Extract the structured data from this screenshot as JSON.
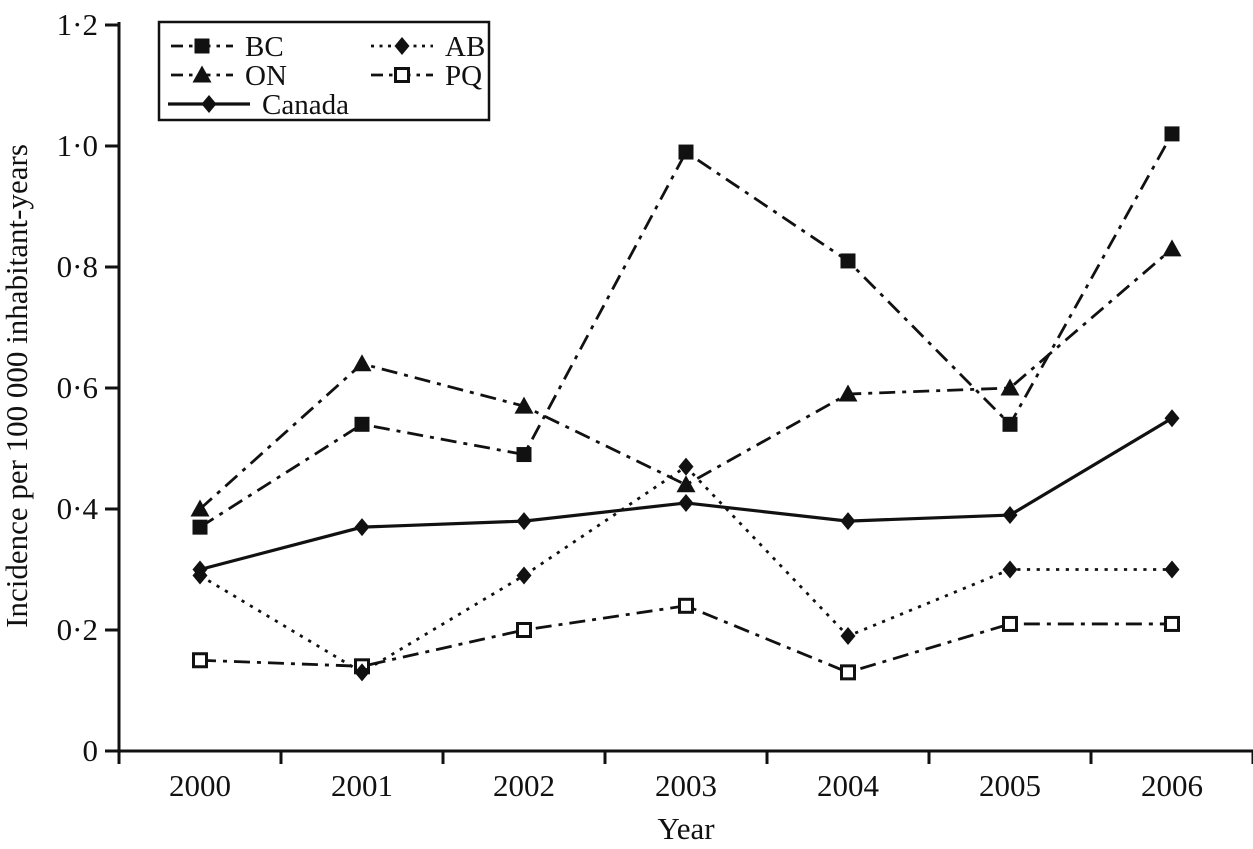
{
  "chart_data": {
    "type": "line",
    "title": "",
    "xlabel": "Year",
    "ylabel": "Incidence per 100 000 inhabitant-years",
    "x": [
      2000,
      2001,
      2002,
      2003,
      2004,
      2005,
      2006
    ],
    "ylim": [
      0,
      1.2
    ],
    "yticks": {
      "values": [
        0,
        0.2,
        0.4,
        0.6,
        0.8,
        1.0,
        1.2
      ],
      "labels": [
        "0",
        "0·2",
        "0·4",
        "0·6",
        "0·8",
        "1·0",
        "1·2"
      ]
    },
    "grid": false,
    "legend_position": "top-left",
    "line_color": "#111111",
    "series": [
      {
        "name": "BC",
        "marker": "filled-square",
        "line": "dash-dot",
        "color": "#111111",
        "values": [
          0.37,
          0.54,
          0.49,
          0.99,
          0.81,
          0.54,
          1.02
        ]
      },
      {
        "name": "ON",
        "marker": "filled-triangle",
        "line": "dash-dot",
        "color": "#111111",
        "values": [
          0.4,
          0.64,
          0.57,
          0.44,
          0.59,
          0.6,
          0.83
        ]
      },
      {
        "name": "Canada",
        "marker": "filled-diamond",
        "line": "solid",
        "color": "#111111",
        "values": [
          0.3,
          0.37,
          0.38,
          0.41,
          0.38,
          0.39,
          0.55
        ]
      },
      {
        "name": "AB",
        "marker": "filled-diamond",
        "line": "dotted",
        "color": "#111111",
        "values": [
          0.29,
          0.13,
          0.29,
          0.47,
          0.19,
          0.3,
          0.3
        ]
      },
      {
        "name": "PQ",
        "marker": "open-square",
        "line": "dash-dot",
        "color": "#111111",
        "values": [
          0.15,
          0.14,
          0.2,
          0.24,
          0.13,
          0.21,
          0.21
        ]
      }
    ]
  }
}
